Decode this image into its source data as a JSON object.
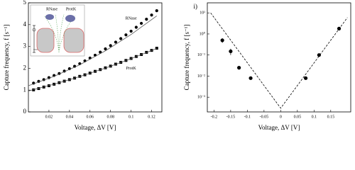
{
  "chart_data": [
    {
      "type": "scatter",
      "xlabel": "Voltage, ΔV [V]",
      "ylabel": "Capture frequency, f [s⁻¹]",
      "xlim": [
        0,
        0.13
      ],
      "ylim": [
        0,
        5
      ],
      "xticks": [
        0.02,
        0.04,
        0.06,
        0.08,
        0.1,
        0.12
      ],
      "yticks": [
        0,
        1,
        2,
        3,
        4,
        5
      ],
      "inset_labels": [
        "RNase",
        "ProtK"
      ],
      "series": [
        {
          "name": "RNase",
          "color": "#000000",
          "marker": "circle",
          "x": [
            0.005,
            0.01,
            0.015,
            0.02,
            0.025,
            0.03,
            0.035,
            0.04,
            0.045,
            0.05,
            0.055,
            0.06,
            0.065,
            0.07,
            0.075,
            0.08,
            0.085,
            0.09,
            0.095,
            0.1,
            0.105,
            0.11,
            0.115,
            0.12,
            0.125
          ],
          "values": [
            1.32,
            1.4,
            1.48,
            1.57,
            1.67,
            1.76,
            1.87,
            1.98,
            2.09,
            2.21,
            2.34,
            2.47,
            2.6,
            2.74,
            2.89,
            3.04,
            3.2,
            3.36,
            3.53,
            3.7,
            3.88,
            4.06,
            4.25,
            4.44,
            4.64
          ]
        },
        {
          "name": "ProtK",
          "color": "#000000",
          "marker": "square",
          "x": [
            0.005,
            0.01,
            0.015,
            0.02,
            0.025,
            0.03,
            0.035,
            0.04,
            0.045,
            0.05,
            0.055,
            0.06,
            0.065,
            0.07,
            0.075,
            0.08,
            0.085,
            0.09,
            0.095,
            0.1,
            0.105,
            0.11,
            0.115,
            0.12,
            0.125
          ],
          "values": [
            1.01,
            1.07,
            1.14,
            1.2,
            1.27,
            1.34,
            1.41,
            1.48,
            1.55,
            1.63,
            1.7,
            1.78,
            1.86,
            1.94,
            2.02,
            2.1,
            2.19,
            2.27,
            2.36,
            2.45,
            2.54,
            2.63,
            2.73,
            2.82,
            2.92
          ]
        },
        {
          "color": "#555555",
          "line": "solid",
          "x": [
            0,
            0.025,
            0.05,
            0.075,
            0.1,
            0.125
          ],
          "values": [
            1.2,
            1.63,
            2.16,
            2.8,
            3.55,
            4.4
          ]
        },
        {
          "color": "#555555",
          "line": "solid",
          "x": [
            0,
            0.025,
            0.05,
            0.075,
            0.1,
            0.125
          ],
          "values": [
            0.96,
            1.27,
            1.62,
            2.01,
            2.44,
            2.91
          ]
        }
      ]
    },
    {
      "type": "scatter",
      "label": "i)",
      "xlabel": "Voltage, ΔV [V]",
      "ylabel": "Capture frequency, f [s⁻¹]",
      "yscale": "log",
      "xlim": [
        -0.22,
        0.21
      ],
      "ylim": [
        0.0002,
        30
      ],
      "xticks": [
        -0.2,
        -0.15,
        -0.1,
        -0.05,
        0,
        0.05,
        0.1,
        0.15
      ],
      "yticks": [
        {
          "value": 10,
          "label": "10¹"
        },
        {
          "value": 1,
          "label": "10⁰"
        },
        {
          "value": 0.1,
          "label": "10⁻¹"
        },
        {
          "value": 0.01,
          "label": "10⁻²"
        },
        {
          "value": 0.001,
          "label": "10⁻³"
        }
      ],
      "series": [
        {
          "color": "#000000",
          "marker": "circle",
          "x": [
            -0.175,
            -0.15,
            -0.125,
            -0.09,
            0.075,
            0.115,
            0.175
          ],
          "values": [
            0.5,
            0.15,
            0.025,
            0.008,
            0.008,
            0.1,
            1.8
          ],
          "errors": [
            0.12,
            0.05,
            0.004,
            0.001,
            0.001,
            0.01,
            0.2
          ]
        },
        {
          "color": "#000000",
          "line": "dashed",
          "x": [
            -0.21,
            0,
            0.2
          ],
          "values": [
            10,
            0.0003,
            6
          ]
        }
      ]
    }
  ]
}
